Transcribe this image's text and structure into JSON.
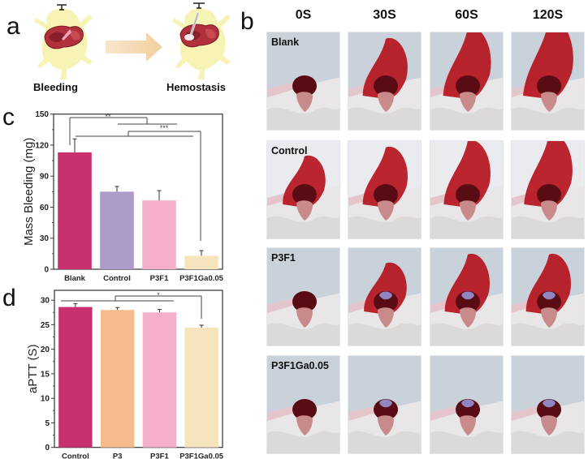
{
  "panels": {
    "a": {
      "letter": "a",
      "left_caption": "Bleeding",
      "right_caption": "Hemostasis"
    },
    "b": {
      "letter": "b",
      "time_points": [
        "0S",
        "30S",
        "60S",
        "120S"
      ],
      "groups": [
        "Blank",
        "Control",
        "P3F1",
        "P3F1Ga0.05"
      ],
      "blood_spread": [
        [
          0.25,
          0.55,
          0.8,
          1.0
        ],
        [
          0.35,
          0.55,
          0.7,
          0.85
        ],
        [
          0.2,
          0.35,
          0.55,
          0.55
        ],
        [
          0.2,
          0.25,
          0.3,
          0.3
        ]
      ]
    },
    "c": {
      "letter": "c"
    },
    "d": {
      "letter": "d"
    }
  },
  "colors": {
    "magenta": "#c8306f",
    "lavender": "#ad9bc9",
    "pink": "#f4b0cb",
    "cream": "#f6e4bd",
    "peach": "#f4bc8e",
    "arrow": "#f5d9b0",
    "body_yellow": "#f6f3b4",
    "liver": "#b0303c"
  },
  "chart_data": [
    {
      "id": "c",
      "type": "bar",
      "title": "",
      "xlabel": "",
      "ylabel": "Mass Bleeding (mg)",
      "categories": [
        "Blank",
        "Control",
        "P3F1",
        "P3F1Ga0.05"
      ],
      "values": [
        113,
        75,
        66.5,
        13
      ],
      "errors": [
        13,
        5,
        9.5,
        5
      ],
      "bar_colors": [
        "#c8306f",
        "#ad9bc9",
        "#f4b0cb",
        "#f6e4bd"
      ],
      "ylim": [
        0,
        150
      ],
      "yticks": [
        0,
        30,
        60,
        90,
        120,
        150
      ],
      "significance": [
        {
          "label": "**",
          "from": "Blank",
          "to_group": [
            "Control",
            "P3F1"
          ]
        },
        {
          "label": "***",
          "from_group": [
            "Blank",
            "Control",
            "P3F1"
          ],
          "to": "P3F1Ga0.05"
        }
      ],
      "grid": false
    },
    {
      "id": "d",
      "type": "bar",
      "title": "",
      "xlabel": "",
      "ylabel": "aPTT (S)",
      "categories": [
        "Control",
        "P3",
        "P3F1",
        "P3F1Ga0.05"
      ],
      "values": [
        28.6,
        28.0,
        27.5,
        24.4
      ],
      "errors": [
        0.7,
        0.5,
        0.6,
        0.5
      ],
      "bar_colors": [
        "#c8306f",
        "#f4bc8e",
        "#f4b0cb",
        "#f6e4bd"
      ],
      "ylim": [
        0,
        32
      ],
      "yticks": [
        0,
        5,
        10,
        15,
        20,
        25,
        30
      ],
      "significance": [
        {
          "label": "*",
          "from_group": [
            "Control",
            "P3",
            "P3F1"
          ],
          "to": "P3F1Ga0.05"
        }
      ],
      "grid": false
    }
  ]
}
